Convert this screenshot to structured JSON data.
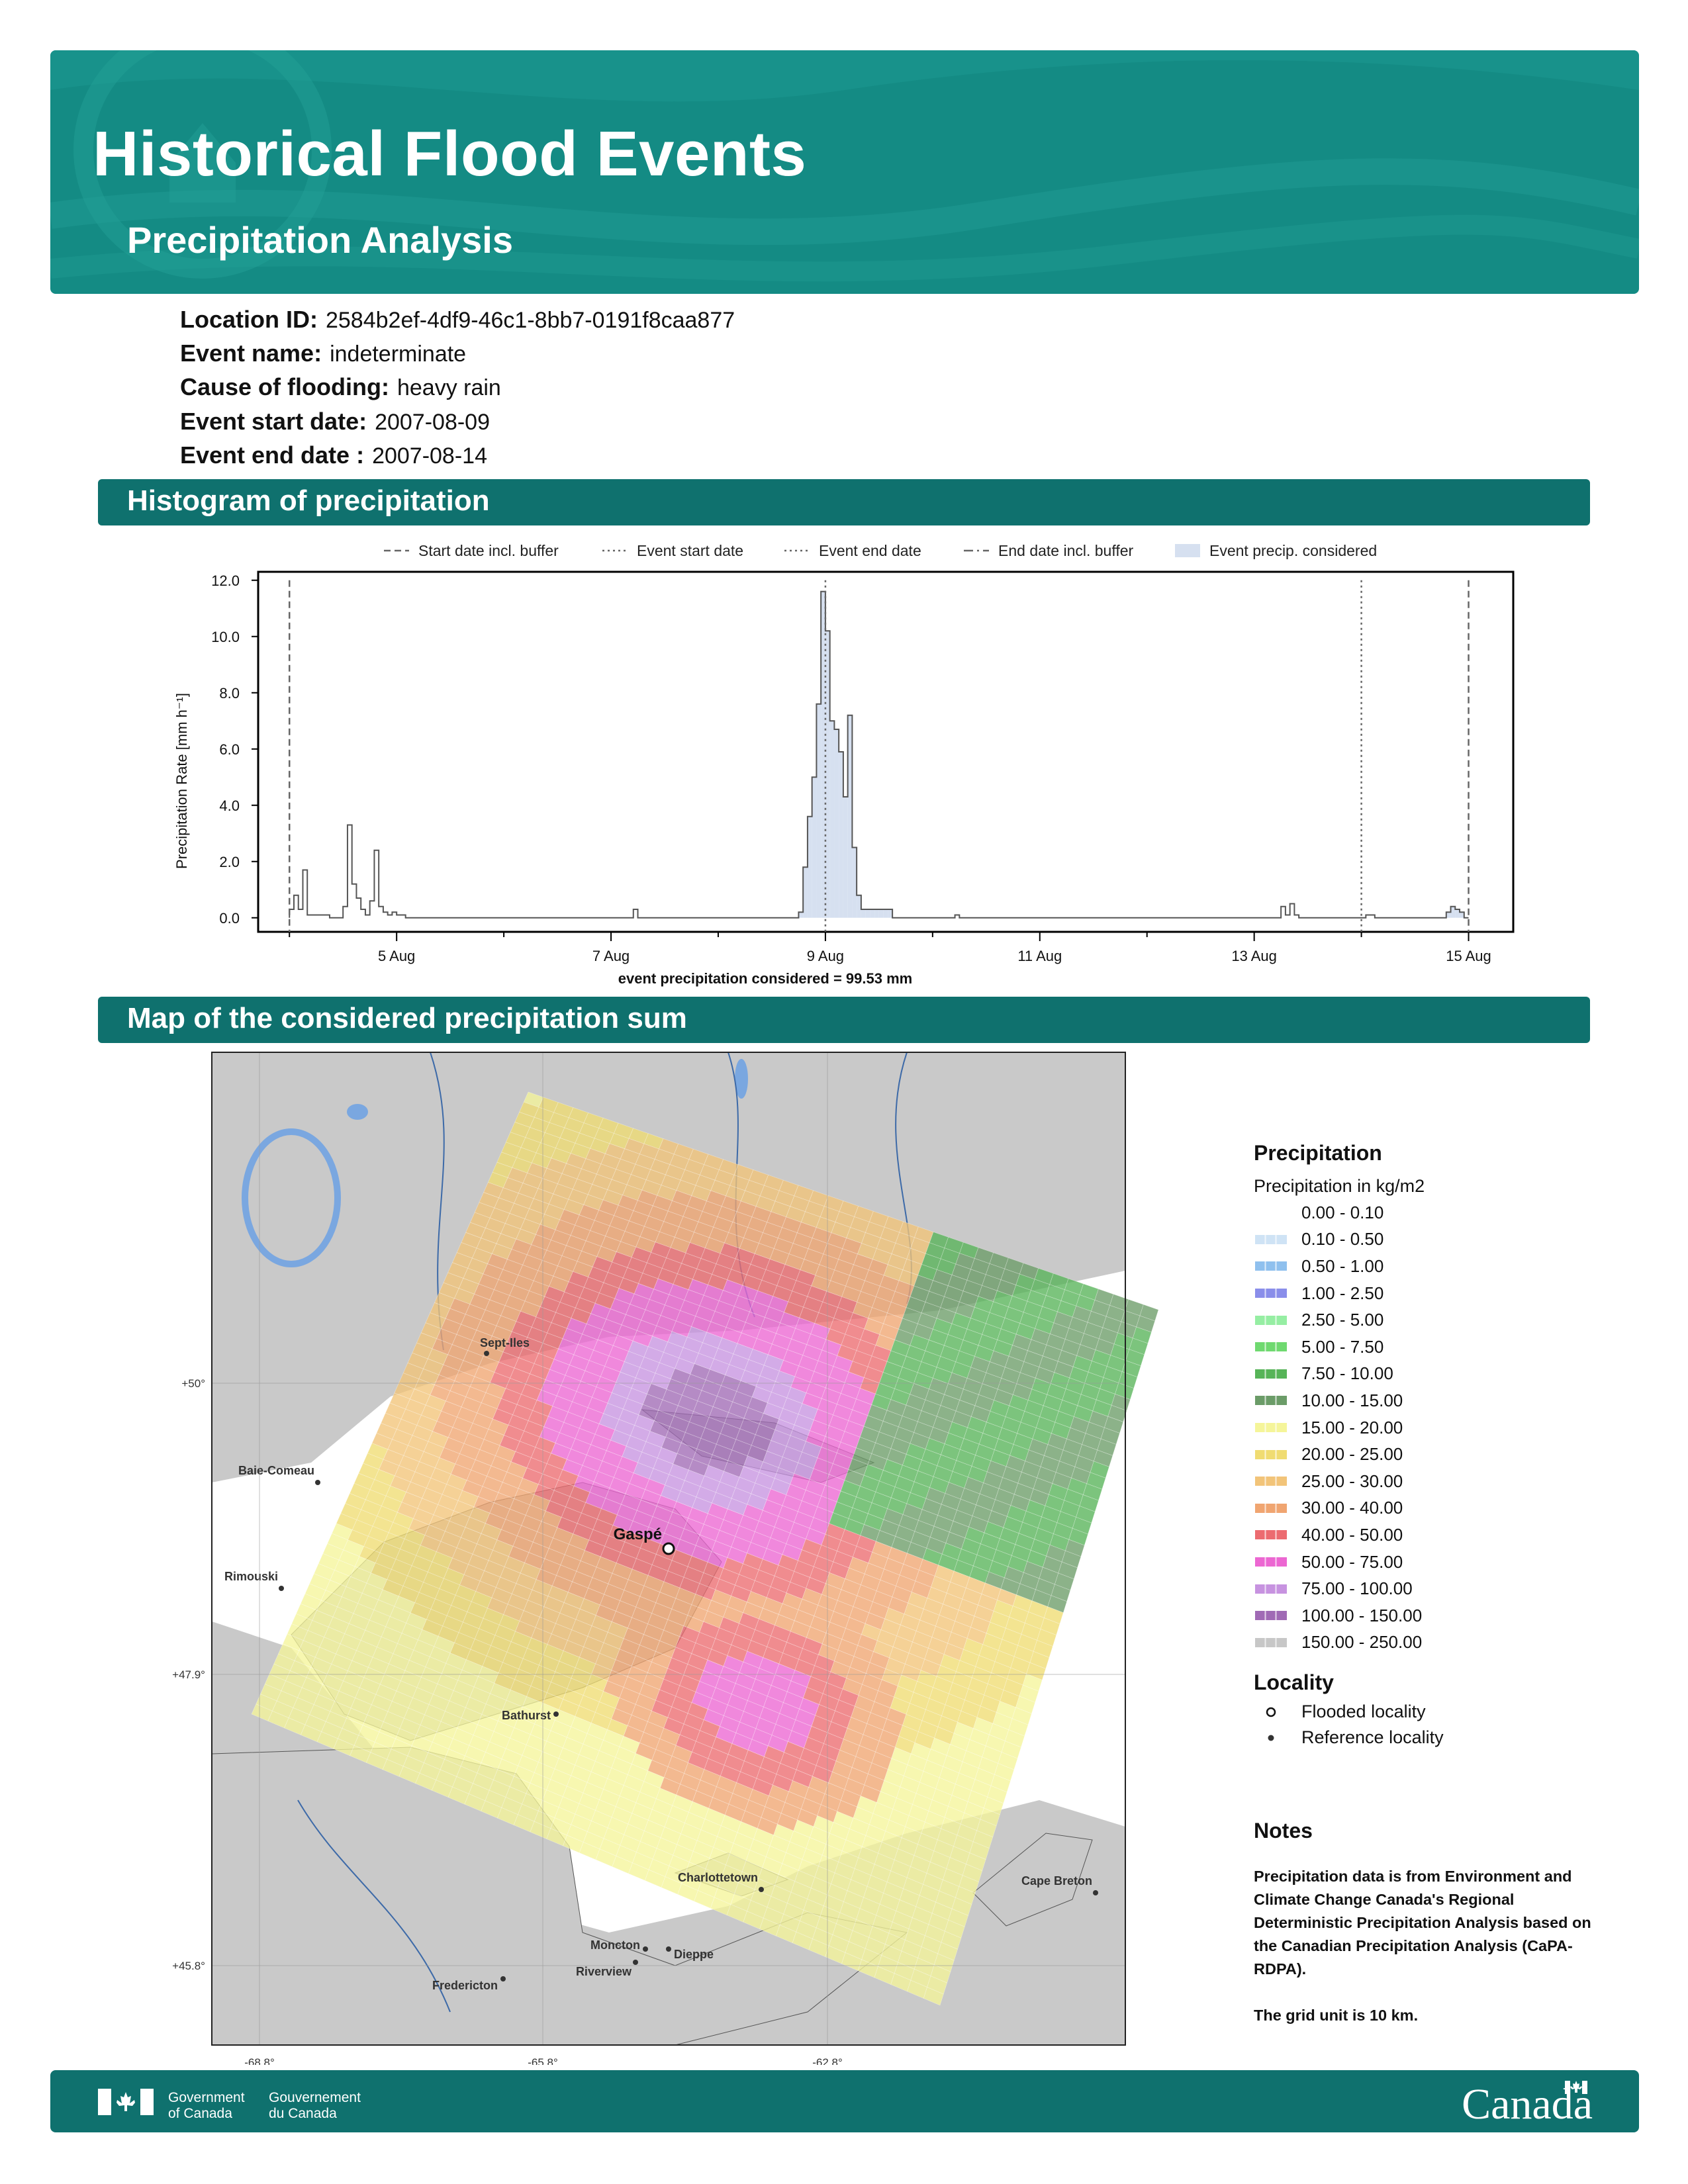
{
  "header": {
    "title": "Historical Flood Events",
    "subtitle": "Precipitation Analysis"
  },
  "event": {
    "location_id_label": "Location ID:",
    "location_id": "2584b2ef-4df9-46c1-8bb7-0191f8caa877",
    "name_label": "Event name:",
    "name": "indeterminate",
    "cause_label": "Cause of flooding:",
    "cause": "heavy rain",
    "start_label": "Event start date:",
    "start": "2007-08-09",
    "end_label": "Event end date :",
    "end": "2007-08-14"
  },
  "sections": {
    "histogram": "Histogram of precipitation",
    "map": "Map of the considered precipitation sum"
  },
  "chart_data": {
    "type": "bar",
    "title": "",
    "ylabel": "Precipitation Rate [mm h⁻¹]",
    "xlabel": "event precipitation considered = 99.53 mm",
    "ylim": [
      -0.5,
      12.3
    ],
    "xlim": [
      "2007-08-03T17:00",
      "2007-08-15T10:00"
    ],
    "yticks": [
      "0.0",
      "2.0",
      "4.0",
      "6.0",
      "8.0",
      "10.0",
      "12.0"
    ],
    "xticks": [
      "5 Aug",
      "7 Aug",
      "9 Aug",
      "11 Aug",
      "13 Aug",
      "15 Aug"
    ],
    "legend": {
      "position": "top",
      "entries": [
        {
          "label": "Start date incl. buffer",
          "style": "dashed"
        },
        {
          "label": "Event start date",
          "style": "dotted"
        },
        {
          "label": "Event end date",
          "style": "dotted"
        },
        {
          "label": "End date incl. buffer",
          "style": "dashdot"
        },
        {
          "label": "Event precip. considered",
          "style": "fill"
        }
      ]
    },
    "vlines": [
      {
        "date": "2007-08-04T00:00",
        "style": "dashed"
      },
      {
        "date": "2007-08-09T00:00",
        "style": "dotted"
      },
      {
        "date": "2007-08-14T00:00",
        "style": "dotted"
      },
      {
        "date": "2007-08-15T00:00",
        "style": "dashed"
      }
    ],
    "series": [
      {
        "rate_points": [
          [
            "2007-08-04T00:00",
            0.3
          ],
          [
            "2007-08-04T01:00",
            0.8
          ],
          [
            "2007-08-04T02:00",
            0.3
          ],
          [
            "2007-08-04T03:00",
            1.7
          ],
          [
            "2007-08-04T04:00",
            0.1
          ],
          [
            "2007-08-04T08:00",
            0.1
          ],
          [
            "2007-08-04T09:00",
            0.0
          ],
          [
            "2007-08-04T12:00",
            0.4
          ],
          [
            "2007-08-04T13:00",
            3.3
          ],
          [
            "2007-08-04T14:00",
            1.2
          ],
          [
            "2007-08-04T15:00",
            0.7
          ],
          [
            "2007-08-04T16:00",
            0.3
          ],
          [
            "2007-08-04T17:00",
            0.1
          ],
          [
            "2007-08-04T18:00",
            0.6
          ],
          [
            "2007-08-04T19:00",
            2.4
          ],
          [
            "2007-08-04T20:00",
            0.4
          ],
          [
            "2007-08-04T21:00",
            0.2
          ],
          [
            "2007-08-04T22:00",
            0.1
          ],
          [
            "2007-08-04T23:00",
            0.2
          ],
          [
            "2007-08-05T00:00",
            0.1
          ],
          [
            "2007-08-05T02:00",
            0.0
          ],
          [
            "2007-08-07T05:00",
            0.3
          ],
          [
            "2007-08-07T06:00",
            0.0
          ],
          [
            "2007-08-08T18:00",
            0.2
          ],
          [
            "2007-08-08T19:00",
            1.8
          ],
          [
            "2007-08-08T20:00",
            3.6
          ],
          [
            "2007-08-08T21:00",
            5.0
          ],
          [
            "2007-08-08T22:00",
            7.6
          ],
          [
            "2007-08-08T23:00",
            11.6
          ],
          [
            "2007-08-09T00:00",
            10.2
          ],
          [
            "2007-08-09T01:00",
            7.0
          ],
          [
            "2007-08-09T02:00",
            6.7
          ],
          [
            "2007-08-09T03:00",
            5.9
          ],
          [
            "2007-08-09T04:00",
            4.3
          ],
          [
            "2007-08-09T05:00",
            7.2
          ],
          [
            "2007-08-09T06:00",
            2.5
          ],
          [
            "2007-08-09T07:00",
            0.8
          ],
          [
            "2007-08-09T08:00",
            0.3
          ],
          [
            "2007-08-09T09:00",
            0.3
          ],
          [
            "2007-08-09T10:00",
            0.3
          ],
          [
            "2007-08-09T11:00",
            0.3
          ],
          [
            "2007-08-09T12:00",
            0.3
          ],
          [
            "2007-08-09T13:00",
            0.3
          ],
          [
            "2007-08-09T14:00",
            0.3
          ],
          [
            "2007-08-09T15:00",
            0.0
          ],
          [
            "2007-08-10T05:00",
            0.1
          ],
          [
            "2007-08-10T06:00",
            0.0
          ],
          [
            "2007-08-13T06:00",
            0.4
          ],
          [
            "2007-08-13T07:00",
            0.1
          ],
          [
            "2007-08-13T08:00",
            0.5
          ],
          [
            "2007-08-13T09:00",
            0.1
          ],
          [
            "2007-08-13T10:00",
            0.0
          ],
          [
            "2007-08-14T01:00",
            0.1
          ],
          [
            "2007-08-14T03:00",
            0.0
          ],
          [
            "2007-08-14T19:00",
            0.2
          ],
          [
            "2007-08-14T20:00",
            0.4
          ],
          [
            "2007-08-14T21:00",
            0.3
          ],
          [
            "2007-08-14T22:00",
            0.2
          ],
          [
            "2007-08-14T23:00",
            0.0
          ]
        ]
      }
    ]
  },
  "map": {
    "lat_labels": [
      "+50°",
      "+47.9°",
      "+45.8°"
    ],
    "lon_labels": [
      "-68.8°",
      "-65.8°",
      "-62.8°"
    ],
    "flooded_locality": "Gaspé",
    "reference_localities": [
      "Sept-Iles",
      "Baie-Comeau",
      "Rimouski",
      "Bathurst",
      "Moncton",
      "Dieppe",
      "Riverview",
      "Fredericton",
      "Charlottetown",
      "Cape Breton"
    ]
  },
  "legend": {
    "title": "Precipitation",
    "subtitle": "Precipitation in kg/m2",
    "classes": [
      {
        "label": "0.00 - 0.10",
        "color": "#ffffff"
      },
      {
        "label": "0.10 - 0.50",
        "color": "#cfe3f5"
      },
      {
        "label": "0.50 - 1.00",
        "color": "#8fc0ee"
      },
      {
        "label": "1.00 - 2.50",
        "color": "#8a8eea"
      },
      {
        "label": "2.50 - 5.00",
        "color": "#96eea3"
      },
      {
        "label": "5.00 - 7.50",
        "color": "#6fd970"
      },
      {
        "label": "7.50 - 10.00",
        "color": "#57b458"
      },
      {
        "label": "10.00 - 15.00",
        "color": "#6b9c68"
      },
      {
        "label": "15.00 - 20.00",
        "color": "#f5f59a"
      },
      {
        "label": "20.00 - 25.00",
        "color": "#f0dc72"
      },
      {
        "label": "25.00 - 30.00",
        "color": "#f2c479"
      },
      {
        "label": "30.00 - 40.00",
        "color": "#f0a571"
      },
      {
        "label": "40.00 - 50.00",
        "color": "#ec6b70"
      },
      {
        "label": "50.00 - 75.00",
        "color": "#ec67d2"
      },
      {
        "label": "75.00 - 100.00",
        "color": "#c793e0"
      },
      {
        "label": "100.00 - 150.00",
        "color": "#a06ab5"
      },
      {
        "label": "150.00 - 250.00",
        "color": "#c7c7c7"
      }
    ],
    "locality_title": "Locality",
    "flooded": "Flooded locality",
    "reference": "Reference locality"
  },
  "notes": {
    "title": "Notes",
    "paragraph1": "Precipitation data is from Environment and Climate Change Canada's Regional Deterministic Precipitation Analysis based on the Canadian Precipitation Analysis (CaPA-RDPA).",
    "paragraph2": "The grid unit is 10 km."
  },
  "footer": {
    "gov_en_1": "Government",
    "gov_en_2": "of Canada",
    "gov_fr_1": "Gouvernement",
    "gov_fr_2": "du Canada",
    "wordmark": "Canada"
  }
}
